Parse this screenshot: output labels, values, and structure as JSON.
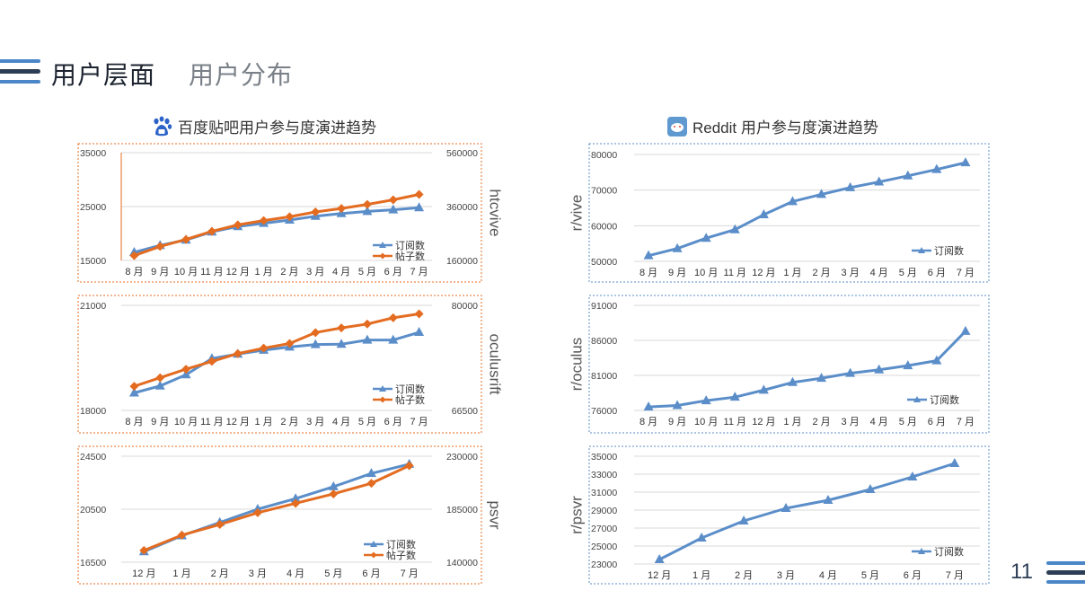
{
  "header": {
    "title": "用户层面",
    "subtitle": "用户分布"
  },
  "page_number": "11",
  "sections": {
    "baidu": {
      "title": "百度贴吧用户参与度演进趋势",
      "icon": "baidu-paw-icon"
    },
    "reddit": {
      "title": "Reddit 用户参与度演进趋势",
      "icon": "reddit-alien-icon"
    }
  },
  "colors": {
    "blue": "#5b8ec9",
    "orange": "#e36c21",
    "navy": "#2c3e55",
    "lightblue": "#4a86c8"
  },
  "chart_data": [
    {
      "id": "baidu-htcvive",
      "type": "line",
      "side_label": "htcvive",
      "categories": [
        "8 月",
        "9 月",
        "10 月",
        "11 月",
        "12 月",
        "1 月",
        "2 月",
        "3 月",
        "4 月",
        "5 月",
        "6 月",
        "7 月"
      ],
      "ylim": [
        15000,
        35000
      ],
      "yticks": [
        "15000",
        "25000",
        "35000"
      ],
      "y2lim": [
        160000,
        560000
      ],
      "y2ticks": [
        "160000",
        "360000",
        "560000"
      ],
      "series": [
        {
          "name": "订阅数",
          "axis": "left",
          "marker": "triangle",
          "values": [
            16500,
            17800,
            18800,
            20300,
            21300,
            21900,
            22500,
            23200,
            23700,
            24100,
            24400,
            24800
          ]
        },
        {
          "name": "帖子数",
          "axis": "right",
          "marker": "diamond",
          "values": [
            178000,
            212000,
            238000,
            268000,
            292000,
            308000,
            322000,
            340000,
            353000,
            368000,
            385000,
            405000
          ]
        }
      ]
    },
    {
      "id": "baidu-oculusrift",
      "type": "line",
      "side_label": "oculusrift",
      "categories": [
        "8 月",
        "9 月",
        "10 月",
        "11 月",
        "12 月",
        "1 月",
        "2 月",
        "3 月",
        "4 月",
        "5 月",
        "6 月",
        "7 月"
      ],
      "ylim": [
        18000,
        21000
      ],
      "yticks": [
        "18000",
        "21000"
      ],
      "y2lim": [
        66500,
        80000
      ],
      "y2ticks": [
        "66500",
        "80000"
      ],
      "series": [
        {
          "name": "订阅数",
          "axis": "left",
          "marker": "triangle",
          "values": [
            18500,
            18700,
            19020,
            19480,
            19610,
            19720,
            19810,
            19880,
            19890,
            20010,
            20010,
            20230
          ]
        },
        {
          "name": "帖子数",
          "axis": "right",
          "marker": "diamond",
          "values": [
            69600,
            70700,
            71800,
            72800,
            73800,
            74500,
            75100,
            76500,
            77100,
            77600,
            78400,
            78900
          ]
        }
      ]
    },
    {
      "id": "baidu-psvr",
      "type": "line",
      "side_label": "psvr",
      "categories": [
        "12 月",
        "1 月",
        "2 月",
        "3 月",
        "4 月",
        "5 月",
        "6 月",
        "7 月"
      ],
      "ylim": [
        16500,
        24500
      ],
      "yticks": [
        "16500",
        "20500",
        "24500"
      ],
      "y2lim": [
        140000,
        230000
      ],
      "y2ticks": [
        "140000",
        "185000",
        "230000"
      ],
      "series": [
        {
          "name": "订阅数",
          "axis": "left",
          "marker": "triangle",
          "values": [
            17300,
            18500,
            19500,
            20500,
            21300,
            22200,
            23200,
            23900
          ]
        },
        {
          "name": "帖子数",
          "axis": "right",
          "marker": "diamond",
          "values": [
            150000,
            163000,
            172000,
            182000,
            190000,
            198000,
            207000,
            222000
          ]
        }
      ]
    },
    {
      "id": "reddit-vive",
      "type": "line",
      "side_label": "r/vive",
      "categories": [
        "8 月",
        "9 月",
        "10 月",
        "11 月",
        "12 月",
        "1 月",
        "2 月",
        "3 月",
        "4 月",
        "5 月",
        "6 月",
        "7 月"
      ],
      "ylim": [
        50000,
        80000
      ],
      "yticks": [
        "50000",
        "60000",
        "70000",
        "80000"
      ],
      "series": [
        {
          "name": "订阅数",
          "axis": "left",
          "marker": "triangle",
          "values": [
            51600,
            53600,
            56500,
            58900,
            63100,
            66800,
            68800,
            70700,
            72300,
            74000,
            75800,
            77700
          ]
        }
      ]
    },
    {
      "id": "reddit-oculus",
      "type": "line",
      "side_label": "r/oculus",
      "categories": [
        "8 月",
        "9 月",
        "10 月",
        "11 月",
        "12 月",
        "1 月",
        "2 月",
        "3 月",
        "4 月",
        "5 月",
        "6 月",
        "7 月"
      ],
      "ylim": [
        76000,
        91000
      ],
      "yticks": [
        "76000",
        "81000",
        "86000",
        "91000"
      ],
      "series": [
        {
          "name": "订阅数",
          "axis": "left",
          "marker": "triangle",
          "values": [
            76500,
            76700,
            77400,
            77900,
            78900,
            80000,
            80600,
            81300,
            81800,
            82400,
            83100,
            87300
          ]
        }
      ]
    },
    {
      "id": "reddit-psvr",
      "type": "line",
      "side_label": "r/psvr",
      "categories": [
        "12 月",
        "1 月",
        "2 月",
        "3 月",
        "4 月",
        "5 月",
        "6 月",
        "7 月"
      ],
      "ylim": [
        23000,
        35000
      ],
      "yticks": [
        "23000",
        "25000",
        "27000",
        "29000",
        "31000",
        "33000",
        "35000"
      ],
      "series": [
        {
          "name": "订阅数",
          "axis": "left",
          "marker": "triangle",
          "values": [
            23500,
            25900,
            27800,
            29200,
            30100,
            31300,
            32700,
            34200
          ]
        }
      ]
    }
  ]
}
